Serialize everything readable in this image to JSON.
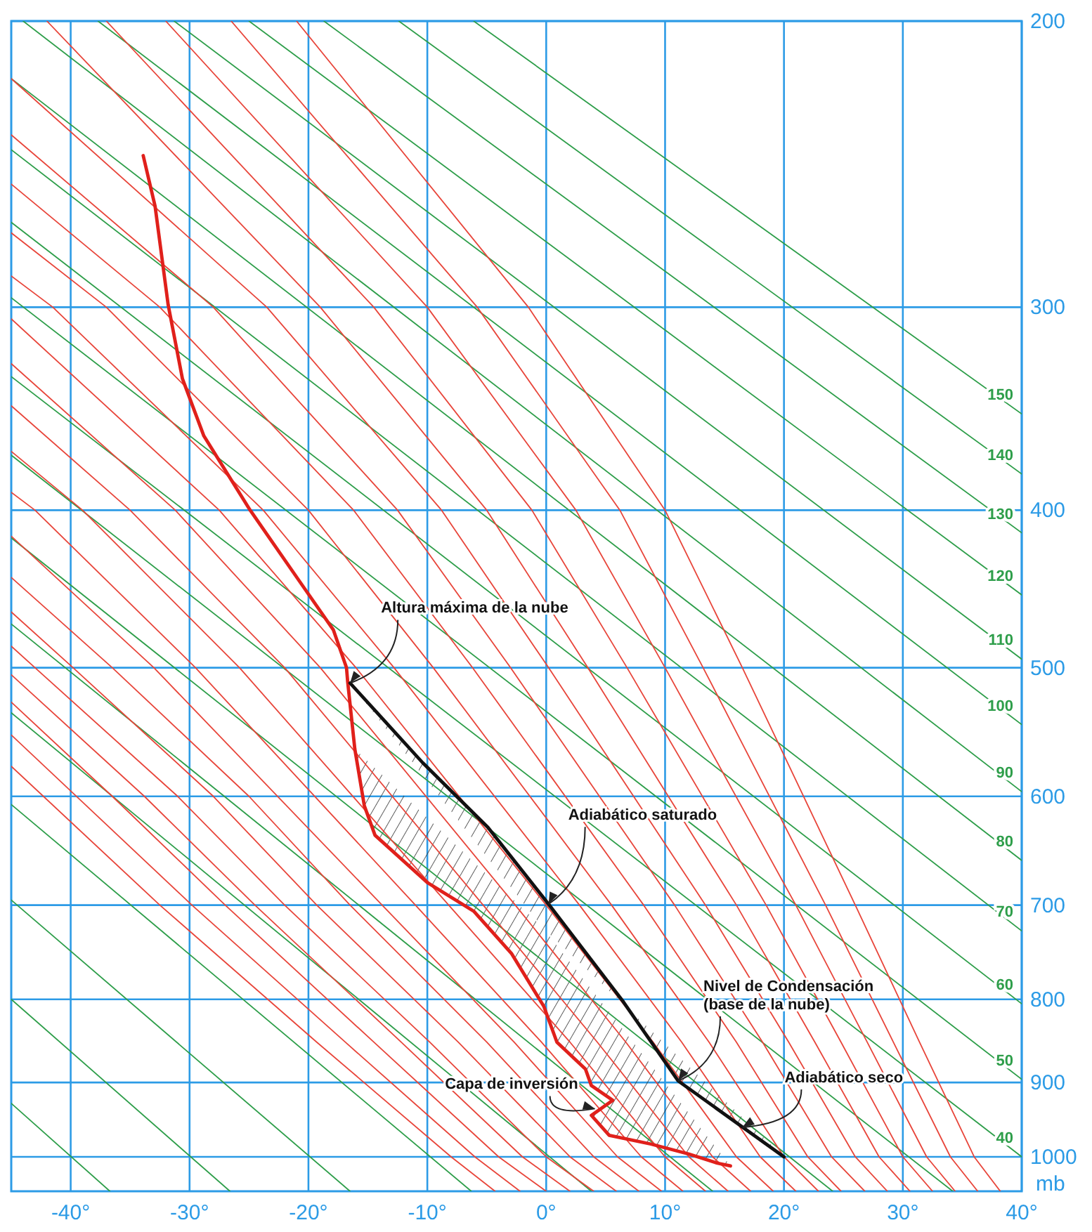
{
  "chart_data": {
    "type": "line",
    "xlim": [
      -45,
      40
    ],
    "ylim": [
      1050,
      200
    ],
    "xticks": [
      {
        "value": -40,
        "label": "-40°"
      },
      {
        "value": -30,
        "label": "-30°"
      },
      {
        "value": -20,
        "label": "-20°"
      },
      {
        "value": -10,
        "label": "-10°"
      },
      {
        "value": 0,
        "label": "0°"
      },
      {
        "value": 10,
        "label": "10°"
      },
      {
        "value": 20,
        "label": "20°"
      },
      {
        "value": 30,
        "label": "30°"
      },
      {
        "value": 40,
        "label": "40°"
      }
    ],
    "yticks": [
      200,
      300,
      400,
      500,
      600,
      700,
      800,
      900,
      1000
    ],
    "ylabel": "mb",
    "grid": true,
    "log": "y",
    "series": [
      {
        "color": "#2e9e4a",
        "x": [
          -45,
          -36.7
        ],
        "values": [
          927,
          1050
        ]
      },
      {
        "color": "#2e9e4a",
        "x": [
          -45,
          -26.6
        ],
        "values": [
          800,
          1050
        ]
      },
      {
        "color": "#2e9e4a",
        "x": [
          -45,
          -16.5
        ],
        "values": [
          695,
          1050
        ]
      },
      {
        "color": "#2e9e4a",
        "x": [
          -45,
          -6.3
        ],
        "values": [
          607,
          1050
        ]
      },
      {
        "color": "#2e9e4a",
        "x": [
          -45,
          3.8
        ],
        "values": [
          533,
          1050
        ]
      },
      {
        "color": "#2e9e4a",
        "x": [
          -45,
          14
        ],
        "values": [
          470,
          1050
        ]
      },
      {
        "color": "#2e9e4a",
        "x": [
          -45,
          24.1
        ],
        "values": [
          416,
          1050
        ]
      },
      {
        "color": "#2e9e4a",
        "x": [
          -45,
          34.2
        ],
        "values": [
          370,
          1050
        ]
      },
      {
        "name": "40",
        "color": "#2e9e4a",
        "x": [
          -45,
          40
        ],
        "values": [
          331,
          1000
        ]
      },
      {
        "name": "50",
        "color": "#2e9e4a",
        "x": [
          -45,
          40
        ],
        "values": [
          296,
          896
        ]
      },
      {
        "name": "60",
        "color": "#2e9e4a",
        "x": [
          -45,
          40
        ],
        "values": [
          266,
          805
        ]
      },
      {
        "name": "70",
        "color": "#2e9e4a",
        "x": [
          -45,
          40
        ],
        "values": [
          240,
          726
        ]
      },
      {
        "name": "80",
        "color": "#2e9e4a",
        "x": [
          -45,
          40
        ],
        "values": [
          217,
          657
        ]
      },
      {
        "name": "90",
        "color": "#2e9e4a",
        "x": [
          -44,
          40
        ],
        "values": [
          200,
          596
        ]
      },
      {
        "name": "100",
        "color": "#2e9e4a",
        "x": [
          -37.7,
          40
        ],
        "values": [
          200,
          542
        ]
      },
      {
        "name": "110",
        "color": "#2e9e4a",
        "x": [
          -31.3,
          40
        ],
        "values": [
          200,
          494
        ]
      },
      {
        "name": "120",
        "color": "#2e9e4a",
        "x": [
          -25,
          40
        ],
        "values": [
          200,
          451
        ]
      },
      {
        "name": "130",
        "color": "#2e9e4a",
        "x": [
          -18.7,
          40
        ],
        "values": [
          200,
          413
        ]
      },
      {
        "name": "140",
        "color": "#2e9e4a",
        "x": [
          -12.4,
          40
        ],
        "values": [
          200,
          380
        ]
      },
      {
        "name": "150",
        "color": "#2e9e4a",
        "x": [
          -6.1,
          40
        ],
        "values": [
          200,
          349
        ]
      },
      {
        "color": "#e8453a",
        "x": [
          -4.3,
          -8,
          -19.3,
          -32.5,
          -45
        ],
        "values": [
          1050,
          1000,
          850,
          700,
          575
        ]
      },
      {
        "color": "#e8453a",
        "x": [
          -2.2,
          -6,
          -16.9,
          -29.8,
          -45
        ],
        "values": [
          1050,
          1000,
          850,
          700,
          550
        ]
      },
      {
        "color": "#e8453a",
        "x": [
          0,
          -4,
          -14.5,
          -27,
          -36.5,
          -45
        ],
        "values": [
          1050,
          1000,
          850,
          700,
          600,
          525
        ]
      },
      {
        "color": "#e8453a",
        "x": [
          2,
          -2,
          -12.2,
          -24.5,
          -33.8,
          -45
        ],
        "values": [
          1050,
          1000,
          850,
          700,
          600,
          505
        ]
      },
      {
        "color": "#e8453a",
        "x": [
          4,
          0,
          -9.8,
          -22,
          -31,
          -43,
          -45
        ],
        "values": [
          1050,
          1000,
          850,
          700,
          600,
          500,
          485
        ]
      },
      {
        "color": "#e8453a",
        "x": [
          5.9,
          2,
          -7.4,
          -19.3,
          -28,
          -39.8,
          -45
        ],
        "values": [
          1050,
          1000,
          850,
          700,
          600,
          500,
          462
        ]
      },
      {
        "color": "#e8453a",
        "x": [
          7.8,
          4,
          -5,
          -16.5,
          -25,
          -36.5,
          -45
        ],
        "values": [
          1050,
          1000,
          850,
          700,
          600,
          500,
          440
        ]
      },
      {
        "color": "#e8453a",
        "x": [
          9.7,
          6,
          -2.7,
          -13.8,
          -33,
          -45
        ],
        "values": [
          1050,
          1000,
          850,
          700,
          500,
          415
        ]
      },
      {
        "color": "#e8453a",
        "x": [
          11.5,
          8,
          -0.4,
          -11,
          -29.5,
          -43,
          -45
        ],
        "values": [
          1050,
          1000,
          850,
          700,
          500,
          400,
          390
        ]
      },
      {
        "color": "#e8453a",
        "x": [
          13.4,
          10,
          2,
          -8.2,
          -25.8,
          -39,
          -45
        ],
        "values": [
          1050,
          1000,
          850,
          700,
          500,
          400,
          368
        ]
      },
      {
        "color": "#e8453a",
        "x": [
          15.3,
          12,
          4.3,
          -5.3,
          -22,
          -35,
          -45
        ],
        "values": [
          1050,
          1000,
          850,
          700,
          500,
          400,
          345
        ]
      },
      {
        "color": "#e8453a",
        "x": [
          17.2,
          14,
          6.7,
          -2.6,
          -19,
          -31.2,
          -45
        ],
        "values": [
          1050,
          1000,
          850,
          700,
          500,
          400,
          325
        ]
      },
      {
        "color": "#e8453a",
        "x": [
          19.1,
          16,
          9,
          0,
          -16,
          -27.5,
          -45
        ],
        "values": [
          1050,
          1000,
          850,
          700,
          500,
          400,
          305
        ]
      },
      {
        "color": "#e8453a",
        "x": [
          21,
          18,
          11.4,
          2.8,
          -12.8,
          -23.8,
          -41.5,
          -45
        ],
        "values": [
          1050,
          1000,
          850,
          700,
          500,
          400,
          300,
          287
        ]
      },
      {
        "color": "#e8453a",
        "x": [
          22.9,
          20,
          13.7,
          5.5,
          -9.5,
          -20,
          -37,
          -45
        ],
        "values": [
          1050,
          1000,
          850,
          700,
          500,
          400,
          300,
          270
        ]
      },
      {
        "color": "#e8453a",
        "x": [
          24.8,
          22,
          16,
          8.2,
          -6.2,
          -16.2,
          -32.5,
          -45
        ],
        "values": [
          1050,
          1000,
          850,
          700,
          500,
          400,
          300,
          252
        ]
      },
      {
        "color": "#e8453a",
        "x": [
          26.8,
          24,
          18.2,
          10.8,
          -3,
          -12.5,
          -28,
          -45
        ],
        "values": [
          1050,
          1000,
          850,
          700,
          500,
          400,
          300,
          235
        ]
      },
      {
        "color": "#e8453a",
        "x": [
          28.7,
          26,
          20.4,
          13.4,
          0.2,
          -8.8,
          -23.5,
          -45
        ],
        "values": [
          1050,
          1000,
          850,
          700,
          500,
          400,
          300,
          217
        ]
      },
      {
        "color": "#e8453a",
        "x": [
          30.6,
          28,
          22.6,
          16,
          3.5,
          -5,
          -19,
          -42
        ],
        "values": [
          1050,
          1000,
          850,
          700,
          500,
          400,
          300,
          200
        ]
      },
      {
        "color": "#e8453a",
        "x": [
          32.5,
          30,
          24.8,
          18.5,
          6.8,
          -1.2,
          -14.5,
          -37
        ],
        "values": [
          1050,
          1000,
          850,
          700,
          500,
          400,
          300,
          200
        ]
      },
      {
        "color": "#e8453a",
        "x": [
          34.4,
          32,
          27,
          21,
          10,
          2.5,
          -10,
          -32
        ],
        "values": [
          1050,
          1000,
          850,
          700,
          500,
          400,
          300,
          200
        ]
      },
      {
        "color": "#e8453a",
        "x": [
          36.3,
          34,
          29.2,
          23.5,
          13.2,
          6.2,
          -5.8,
          -26.5
        ],
        "values": [
          1050,
          1000,
          850,
          700,
          500,
          400,
          300,
          200
        ]
      },
      {
        "color": "#e8453a",
        "x": [
          38.2,
          36,
          31.4,
          26,
          16.5,
          10,
          -1.5,
          -21
        ],
        "values": [
          1050,
          1000,
          850,
          700,
          500,
          400,
          300,
          200
        ]
      },
      {
        "color": "#e0201b",
        "x": [
          -33.9,
          -32.9,
          -31.8,
          -30.6,
          -28.8,
          -24.9,
          -20.6,
          -17.9,
          -16.8,
          -16.7,
          -16.1,
          -15.3,
          -14.4,
          -10,
          -6.1,
          -2.9,
          -0.2,
          0.9,
          3.3,
          3.8,
          5.6,
          3.8,
          5.3,
          8.8,
          12,
          14.4,
          15.5
        ],
        "values": [
          242,
          260,
          299,
          332,
          360,
          400,
          444,
          474,
          500,
          510,
          561,
          608,
          634,
          678,
          706,
          750,
          808,
          850,
          883,
          904,
          923,
          943,
          970,
          982,
          996,
          1009,
          1013
        ]
      },
      {
        "color": "#111111",
        "x": [
          20,
          11.1,
          6.5,
          0.2,
          -4.9,
          -10.4,
          -16.5
        ],
        "values": [
          1000,
          898,
          803,
          699,
          627,
          572,
          511
        ]
      }
    ],
    "annotations": [
      {
        "text": "Altura máxima de la nube",
        "x": -16.5,
        "y": 511
      },
      {
        "text": "Adiabático saturado",
        "x": 0.2,
        "y": 699
      },
      {
        "text": "Nivel de Condensación\n(base de la nube)",
        "x": 11.1,
        "y": 898
      },
      {
        "text": "Capa de inversión",
        "x": 4.1,
        "y": 934
      },
      {
        "text": "Adiabático seco",
        "x": 16.5,
        "y": 959
      }
    ]
  }
}
